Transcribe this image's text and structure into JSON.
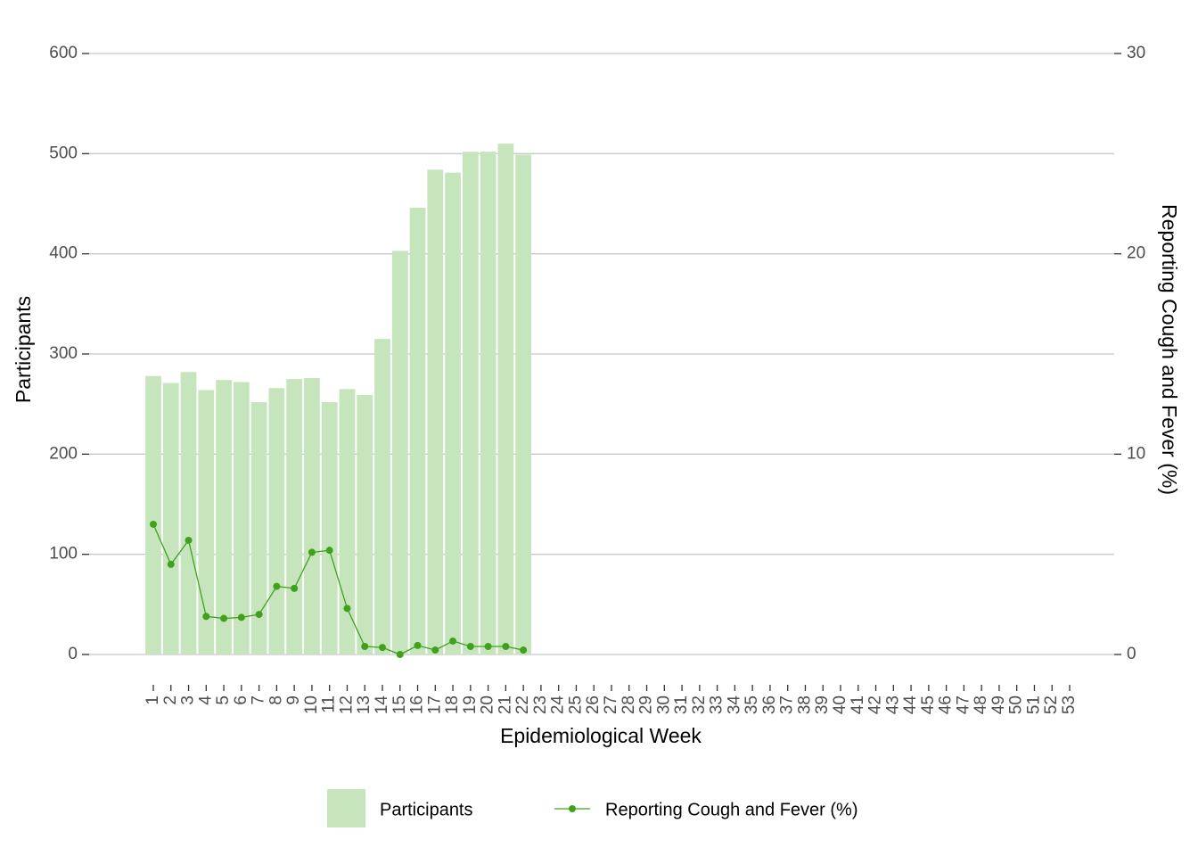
{
  "chart_data": {
    "type": "bar_line",
    "xlabel": "Epidemiological Week",
    "ylabel": "Participants",
    "y2label": "Reporting Cough and Fever (%)",
    "categories": [
      "1",
      "2",
      "3",
      "4",
      "5",
      "6",
      "7",
      "8",
      "9",
      "10",
      "11",
      "12",
      "13",
      "14",
      "15",
      "16",
      "17",
      "18",
      "19",
      "20",
      "21",
      "22",
      "23",
      "24",
      "25",
      "26",
      "27",
      "28",
      "29",
      "30",
      "31",
      "32",
      "33",
      "34",
      "35",
      "36",
      "37",
      "38",
      "39",
      "40",
      "41",
      "42",
      "43",
      "44",
      "45",
      "46",
      "47",
      "48",
      "49",
      "50",
      "51",
      "52",
      "53"
    ],
    "series": [
      {
        "name": "Participants",
        "type": "bar",
        "color": "#c7e5bd",
        "values": [
          278,
          271,
          282,
          264,
          274,
          272,
          252,
          266,
          275,
          276,
          252,
          265,
          259,
          315,
          403,
          446,
          484,
          481,
          502,
          502,
          510,
          499,
          null,
          null,
          null,
          null,
          null,
          null,
          null,
          null,
          null,
          null,
          null,
          null,
          null,
          null,
          null,
          null,
          null,
          null,
          null,
          null,
          null,
          null,
          null,
          null,
          null,
          null,
          null,
          null,
          null,
          null,
          null
        ]
      },
      {
        "name": "Reporting Cough and Fever (%)",
        "type": "line",
        "axis": "y2",
        "color": "#41a11e",
        "values": [
          6.5,
          4.5,
          5.7,
          1.9,
          1.8,
          1.85,
          2.0,
          3.4,
          3.3,
          5.1,
          5.2,
          2.3,
          0.4,
          0.35,
          0,
          0.45,
          0.22,
          0.67,
          0.4,
          0.4,
          0.4,
          0.22,
          null,
          null,
          null,
          null,
          null,
          null,
          null,
          null,
          null,
          null,
          null,
          null,
          null,
          null,
          null,
          null,
          null,
          null,
          null,
          null,
          null,
          null,
          null,
          null,
          null,
          null,
          null,
          null,
          null,
          null,
          null
        ]
      }
    ],
    "ylim": [
      0,
      600
    ],
    "yticks": [
      0,
      100,
      200,
      300,
      400,
      500,
      600
    ],
    "y2lim": [
      0,
      30
    ],
    "y2ticks": [
      0,
      10,
      20,
      30
    ],
    "grid": true,
    "legend": "bottom"
  }
}
